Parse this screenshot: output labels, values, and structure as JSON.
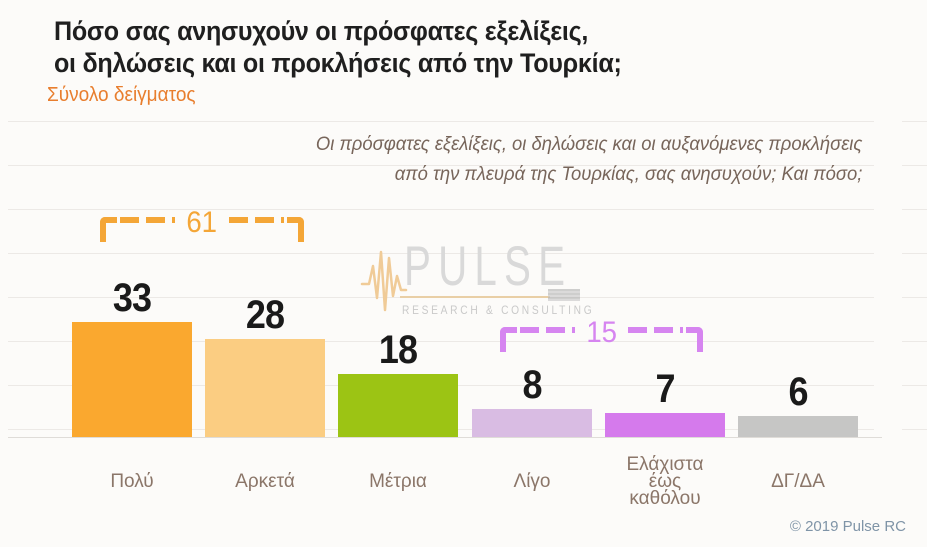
{
  "title": {
    "line1": "Πόσο σας ανησυχούν οι πρόσφατες εξελίξεις,",
    "line2": "οι δηλώσεις και οι προκλήσεις από την Τουρκία;"
  },
  "subtitle": "Σύνολο δείγματος",
  "question": {
    "line1": "Οι πρόσφατες εξελίξεις, οι δηλώσεις και οι αυξανόμενες προκλήσεις",
    "line2": "από την πλευρά της Τουρκίας, σας ανησυχούν; Και πόσο;"
  },
  "watermark": {
    "name": "PULSE",
    "tagline": "RESEARCH & CONSULTING"
  },
  "footer": {
    "copyright": "© 2019 Pulse RC"
  },
  "colors": {
    "title": "#1F1F1F",
    "subtitle_accent": "#E87E2E",
    "question_text": "#77655A",
    "category_labels": "#8B7669",
    "footer_text": "#7F94A7",
    "background": "#FCFBF9"
  },
  "chart_data": {
    "type": "bar",
    "title": "Πόσο σας ανησυχούν οι πρόσφατες εξελίξεις, οι δηλώσεις και οι προκλήσεις από την Τουρκία;",
    "subtitle": "Σύνολο δείγματος",
    "categories": [
      "Πολύ",
      "Αρκετά",
      "Μέτρια",
      "Λίγο",
      "Ελάχιστα\nέως\nκαθόλου",
      "ΔΓ/ΔΑ"
    ],
    "values": [
      33,
      28,
      18,
      8,
      7,
      6
    ],
    "bar_colors": [
      "#FAA82F",
      "#FBCD82",
      "#9CC414",
      "#D9BCE3",
      "#D57AEC",
      "#C6C6C5"
    ],
    "value_label_color": "#1A1A1A",
    "groups": [
      {
        "label": "61",
        "color": "#F4A637",
        "spans_categories": [
          "Πολύ",
          "Αρκετά"
        ]
      },
      {
        "label": "15",
        "color": "#D685F0",
        "spans_categories": [
          "Λίγο",
          "Ελάχιστα έως καθόλου"
        ]
      }
    ],
    "xlabel": "",
    "ylabel": "",
    "ylim": [
      0,
      40
    ],
    "grid": "faint-horizontal",
    "legend": "none"
  }
}
